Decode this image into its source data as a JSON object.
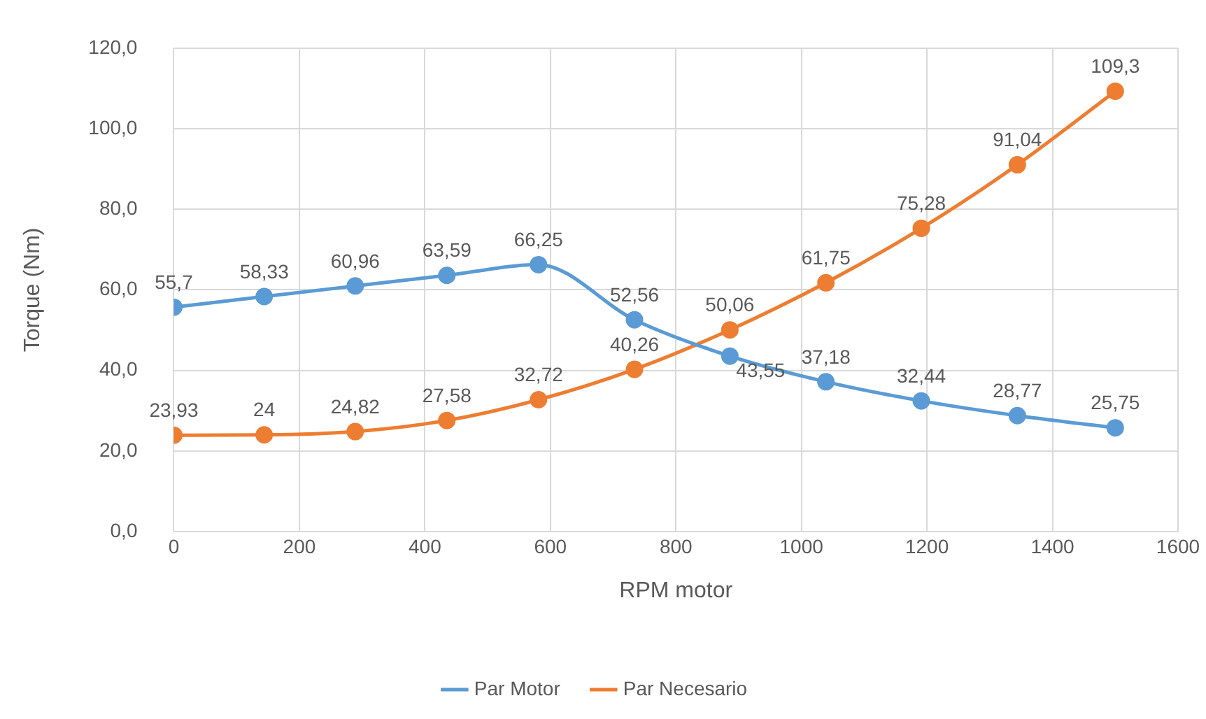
{
  "chart_data": {
    "type": "line",
    "xlabel": "RPM motor",
    "ylabel": "Torque (Nm)",
    "xlim": [
      0,
      1600
    ],
    "xticks": [
      0,
      200,
      400,
      600,
      800,
      1000,
      1200,
      1400,
      1600
    ],
    "ylim": [
      0,
      120
    ],
    "yticks": [
      {
        "value": 0,
        "label": "0,0"
      },
      {
        "value": 20,
        "label": "20,0"
      },
      {
        "value": 40,
        "label": "40,0"
      },
      {
        "value": 60,
        "label": "60,0"
      },
      {
        "value": 80,
        "label": "80,0"
      },
      {
        "value": 100,
        "label": "100,0"
      },
      {
        "value": 120,
        "label": "120,0"
      }
    ],
    "x": [
      0,
      144,
      289,
      435,
      581,
      734,
      886,
      1039,
      1191,
      1344,
      1500
    ],
    "series": [
      {
        "name": "Par Motor",
        "color": "#5b9bd5",
        "values": [
          55.7,
          58.33,
          60.96,
          63.59,
          66.25,
          52.56,
          43.55,
          37.18,
          32.44,
          28.77,
          25.75
        ],
        "value_labels": [
          "55,7",
          "58,33",
          "60,96",
          "63,59",
          "66,25",
          "52,56",
          "43,55",
          "37,18",
          "32,44",
          "28,77",
          "25,75"
        ]
      },
      {
        "name": "Par Necesario",
        "color": "#ed7d31",
        "values": [
          23.93,
          24,
          24.82,
          27.58,
          32.72,
          40.26,
          50.06,
          61.75,
          75.28,
          91.04,
          109.3
        ],
        "value_labels": [
          "23,93",
          "24",
          "24,82",
          "27,58",
          "32,72",
          "40,26",
          "50,06",
          "61,75",
          "75,28",
          "91,04",
          "109,3"
        ]
      }
    ],
    "grid": true,
    "legend": "bottom",
    "marker": "circle",
    "line_style": "solid"
  }
}
